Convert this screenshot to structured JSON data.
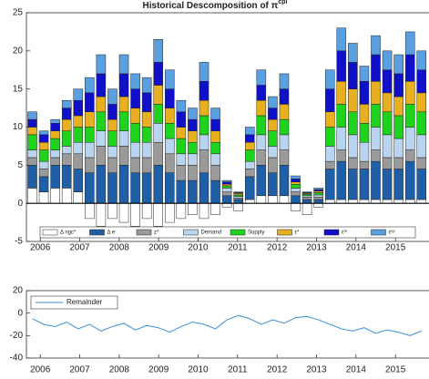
{
  "chart_data": [
    {
      "type": "bar",
      "stacked": true,
      "title": "Historical Descomposition of π",
      "title_superscript": "cpi",
      "x": [
        2005.8,
        2006.09,
        2006.38,
        2006.67,
        2006.96,
        2007.25,
        2007.54,
        2007.83,
        2008.12,
        2008.41,
        2008.7,
        2008.99,
        2009.28,
        2009.57,
        2009.86,
        2010.15,
        2010.44,
        2010.73,
        2011.02,
        2011.31,
        2011.6,
        2011.89,
        2012.18,
        2012.47,
        2012.76,
        2013.05,
        2013.34,
        2013.63,
        2013.92,
        2014.21,
        2014.5,
        2014.79,
        2015.08,
        2015.37,
        2015.66
      ],
      "xlim": [
        2005.65,
        2015.85
      ],
      "xticks": [
        2006,
        2007,
        2008,
        2009,
        2010,
        2011,
        2012,
        2013,
        2014,
        2015
      ],
      "ylim": [
        -5,
        25
      ],
      "yticks": [
        -5,
        0,
        5,
        10,
        15,
        20,
        25
      ],
      "legend": "bottom",
      "series": [
        {
          "name": "Δ ngc*",
          "color": "#ffffff",
          "values": [
            2,
            1.5,
            2,
            2,
            1.5,
            -2,
            -3,
            -2,
            -2.5,
            -3,
            -2,
            -3,
            -2.5,
            -2,
            -1.5,
            -2,
            -1.5,
            -0.5,
            -1,
            0.5,
            1,
            1,
            1,
            -1,
            -1.5,
            -0.5,
            0.5,
            0.5,
            0.5,
            0.5,
            0.5,
            0.5,
            0.5,
            0.5,
            0.5
          ]
        },
        {
          "name": "Δ e",
          "color": "#1f5fa8",
          "values": [
            3,
            2,
            3,
            3,
            3,
            4,
            5,
            4,
            5,
            4,
            4,
            5,
            4,
            3,
            3,
            4,
            3,
            1,
            0.5,
            3,
            4,
            3,
            4,
            1,
            0.5,
            0.5,
            4,
            5,
            4,
            4,
            5,
            4,
            4,
            5,
            4
          ]
        },
        {
          "name": "z*",
          "color": "#9a9a9a",
          "values": [
            1,
            1,
            1,
            1.5,
            2,
            2,
            2.5,
            2,
            2.5,
            2,
            2,
            3,
            2.5,
            2,
            2,
            3,
            2,
            0.5,
            0.2,
            1,
            2,
            2,
            2,
            0.5,
            0.3,
            0.3,
            1,
            1.5,
            1.5,
            1,
            1.5,
            1.5,
            1.5,
            1.5,
            1.5
          ]
        },
        {
          "name": "Demand",
          "color": "#b8d4ee",
          "values": [
            1,
            1,
            1,
            1,
            1.5,
            2,
            2,
            1.5,
            2,
            2,
            2,
            2.5,
            2,
            1.5,
            1.5,
            2,
            1.5,
            0.5,
            0.2,
            1,
            2,
            1.5,
            2,
            0.5,
            0.2,
            0.3,
            2,
            3,
            3,
            2.5,
            3,
            3,
            2.5,
            3,
            3
          ]
        },
        {
          "name": "Supply",
          "color": "#1ed21e",
          "values": [
            2,
            1.5,
            1.5,
            2,
            2,
            2,
            2.5,
            2,
            2.5,
            2.5,
            2,
            2.5,
            2,
            2,
            1.5,
            2.5,
            1.5,
            0.3,
            0.2,
            1.5,
            2.5,
            2,
            2,
            0.5,
            0.2,
            0.3,
            2.5,
            3,
            3,
            2.5,
            3,
            3,
            3,
            3,
            3
          ]
        },
        {
          "name": "ε*",
          "color": "#e8b020",
          "values": [
            1,
            1,
            1,
            1.5,
            1.5,
            2,
            2,
            1.5,
            2,
            2,
            2,
            2.5,
            2,
            1.5,
            1.5,
            2,
            1.5,
            0.2,
            0.2,
            1,
            2,
            1.5,
            2,
            0.3,
            0.1,
            0.2,
            2,
            3,
            3,
            2.5,
            3,
            2.5,
            2.5,
            3,
            2.5
          ]
        },
        {
          "name": "εᵐ",
          "color": "#1010c8",
          "values": [
            1,
            1,
            1,
            1.5,
            2,
            2.5,
            3,
            2,
            3,
            2.5,
            2.5,
            3,
            2.5,
            2,
            1.5,
            2.5,
            1.5,
            0.3,
            0.1,
            1,
            2,
            1.5,
            2,
            0.4,
            0.1,
            0.2,
            3,
            4,
            3.5,
            3,
            3.5,
            3,
            3,
            3.5,
            3
          ]
        },
        {
          "name": "εᶜᵖ",
          "color": "#5aa0e0",
          "values": [
            1,
            0.5,
            0.5,
            1,
            1.5,
            2,
            2.5,
            2,
            2.5,
            2,
            2,
            3,
            2.5,
            1.5,
            1.5,
            2.5,
            1.5,
            0.2,
            0.1,
            1,
            2,
            1.5,
            2,
            0.4,
            0.1,
            0.2,
            2.5,
            3,
            2.5,
            2,
            2.5,
            2.5,
            2.5,
            3,
            2.5
          ]
        }
      ]
    },
    {
      "type": "line",
      "x": [
        2005.8,
        2006.09,
        2006.38,
        2006.67,
        2006.96,
        2007.25,
        2007.54,
        2007.83,
        2008.12,
        2008.41,
        2008.7,
        2008.99,
        2009.28,
        2009.57,
        2009.86,
        2010.15,
        2010.44,
        2010.73,
        2011.02,
        2011.31,
        2011.6,
        2011.89,
        2012.18,
        2012.47,
        2012.76,
        2013.05,
        2013.34,
        2013.63,
        2013.92,
        2014.21,
        2014.5,
        2014.79,
        2015.08,
        2015.37,
        2015.66
      ],
      "xlim": [
        2005.65,
        2015.85
      ],
      "xticks": [
        2006,
        2007,
        2008,
        2009,
        2010,
        2011,
        2012,
        2013,
        2014,
        2015
      ],
      "ylim": [
        -40,
        20
      ],
      "yticks": [
        -40,
        -20,
        0,
        20
      ],
      "legend": "top-left",
      "series": [
        {
          "name": "Remainder",
          "color": "#3a8fd8",
          "values": [
            -5,
            -10,
            -12,
            -8,
            -14,
            -10,
            -16,
            -12,
            -9,
            -15,
            -11,
            -13,
            -17,
            -12,
            -8,
            -10,
            -14,
            -6,
            -2,
            -5,
            -10,
            -6,
            -9,
            -4,
            -3,
            -6,
            -10,
            -14,
            -16,
            -13,
            -18,
            -15,
            -17,
            -20,
            -16
          ]
        }
      ]
    }
  ]
}
